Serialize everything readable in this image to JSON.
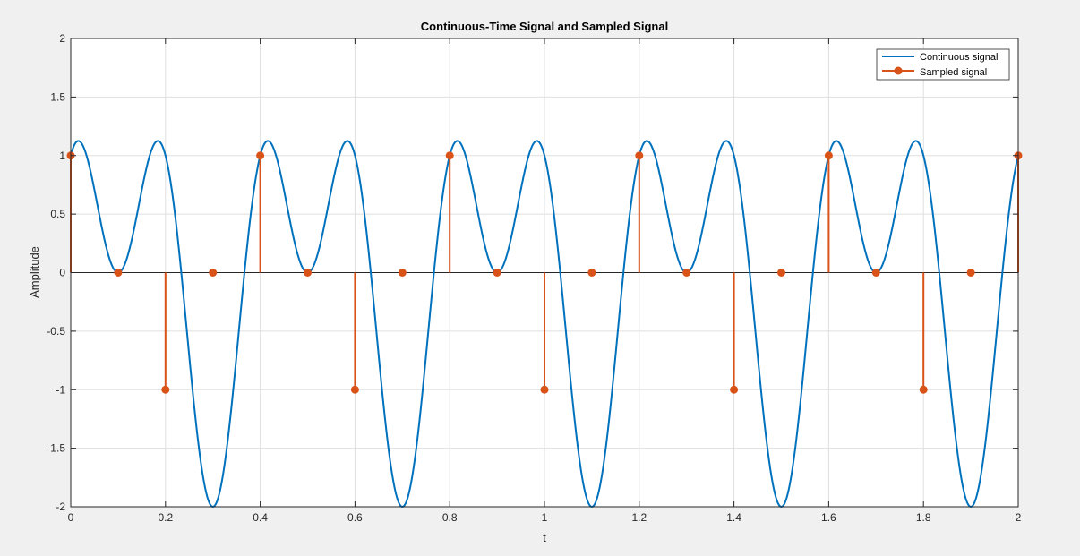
{
  "chart_data": {
    "type": "line",
    "title": "Continuous-Time Signal and Sampled Signal",
    "xlabel": "t",
    "ylabel": "Amplitude",
    "xlim": [
      0,
      2
    ],
    "ylim": [
      -2,
      2
    ],
    "grid": true,
    "legend_location": "top-right",
    "x_ticks": [
      0,
      0.2,
      0.4,
      0.6,
      0.8,
      1,
      1.2,
      1.4,
      1.6,
      1.8,
      2
    ],
    "x_tick_labels": [
      "0",
      "0.2",
      "0.4",
      "0.6",
      "0.8",
      "1",
      "1.2",
      "1.4",
      "1.6",
      "1.8",
      "2"
    ],
    "y_ticks": [
      -2,
      -1.5,
      -1,
      -0.5,
      0,
      0.5,
      1,
      1.5,
      2
    ],
    "y_tick_labels": [
      "-2",
      "-1.5",
      "-1",
      "-0.5",
      "0",
      "0.5",
      "1",
      "1.5",
      "2"
    ],
    "series": [
      {
        "name": "Continuous signal",
        "kind": "line",
        "color": "#0072BD",
        "expression": "cos(2*pi*5*t) + sin(2*pi*2.5*t)",
        "x_range": [
          0,
          2
        ]
      },
      {
        "name": "Sampled signal",
        "kind": "stem",
        "color": "#D95319",
        "x": [
          0,
          0.1,
          0.2,
          0.3,
          0.4,
          0.5,
          0.6,
          0.7,
          0.8,
          0.9,
          1.0,
          1.1,
          1.2,
          1.3,
          1.4,
          1.5,
          1.6,
          1.7,
          1.8,
          1.9,
          2.0
        ],
        "y": [
          1,
          0,
          -1,
          0,
          1,
          0,
          -1,
          0,
          1,
          0,
          -1,
          0,
          1,
          0,
          -1,
          0,
          1,
          0,
          -1,
          0,
          1
        ]
      }
    ]
  }
}
